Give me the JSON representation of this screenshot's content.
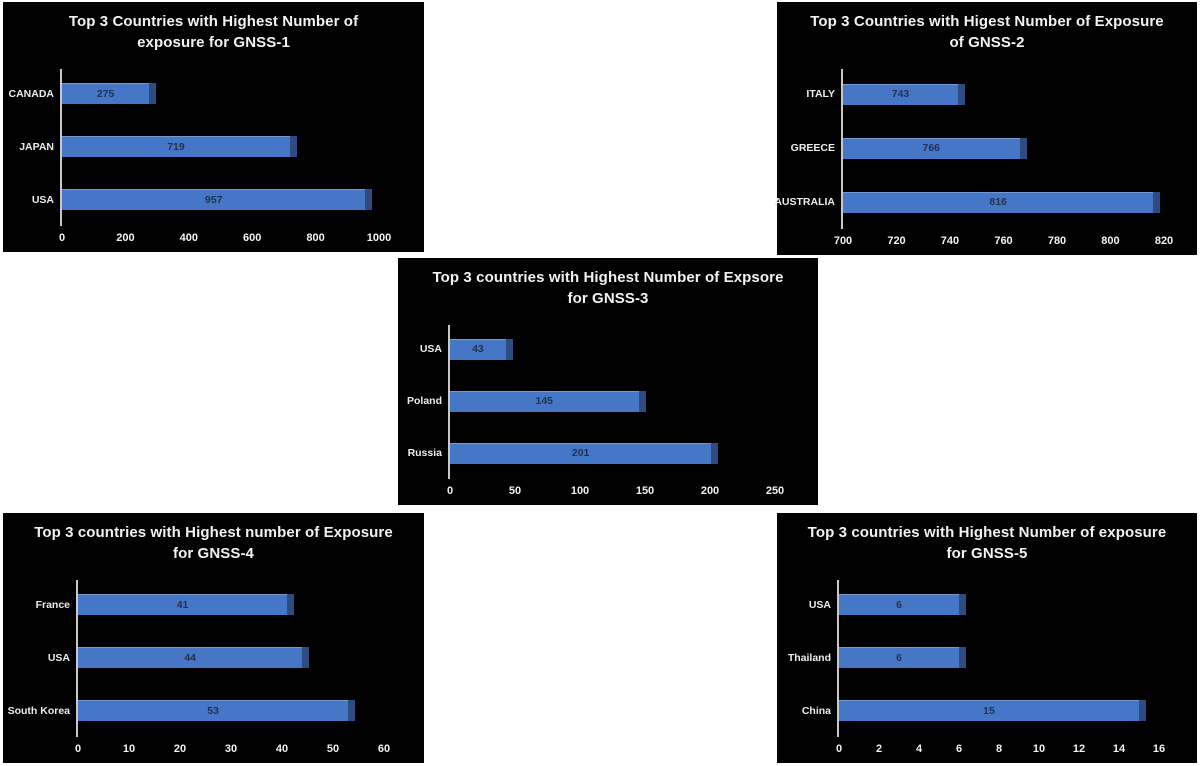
{
  "style": {
    "page_bg": "#ffffff",
    "panel_bg": "#000000",
    "bar_fill": "#4577c6",
    "bar_cap": "#2e4c80",
    "value_text": "#233150",
    "label_text": "#ececec",
    "axis_line": "#c9c9c9",
    "title_text": "#f2f2f2"
  },
  "chart_data": [
    {
      "id": "GNSS-1",
      "type": "bar",
      "orientation": "horizontal",
      "title": "Top 3 Countries with Highest Number of exposure for GNSS-1",
      "title_lines": [
        "Top 3 Countries with Highest Number of",
        "exposure for GNSS-1"
      ],
      "categories": [
        "CANADA",
        "JAPAN",
        "USA"
      ],
      "values": [
        275,
        719,
        957
      ],
      "xlim": [
        0,
        1000
      ],
      "xticks": [
        0,
        200,
        400,
        600,
        800,
        1000
      ],
      "grid": false
    },
    {
      "id": "GNSS-2",
      "type": "bar",
      "orientation": "horizontal",
      "title": "Top 3 Countries with Higest Number of Exposure of GNSS-2",
      "title_lines": [
        "Top 3 Countries with Higest Number of Exposure",
        "of GNSS-2"
      ],
      "categories": [
        "ITALY",
        "GREECE",
        "AUSTRALIA"
      ],
      "values": [
        743,
        766,
        816
      ],
      "xlim": [
        700,
        820
      ],
      "xticks": [
        700,
        720,
        740,
        760,
        780,
        800,
        820
      ],
      "grid": false
    },
    {
      "id": "GNSS-3",
      "type": "bar",
      "orientation": "horizontal",
      "title": "Top 3 countries with Highest Number of Expsore for GNSS-3",
      "title_lines": [
        "Top 3 countries with Highest Number of Expsore",
        "for GNSS-3"
      ],
      "categories": [
        "USA",
        "Poland",
        "Russia"
      ],
      "values": [
        43,
        145,
        201
      ],
      "xlim": [
        0,
        250
      ],
      "xticks": [
        0,
        50,
        100,
        150,
        200,
        250
      ],
      "grid": false
    },
    {
      "id": "GNSS-4",
      "type": "bar",
      "orientation": "horizontal",
      "title": "Top 3 countries with Highest number of Exposure for GNSS-4",
      "title_lines": [
        "Top 3 countries with Highest number of Exposure",
        "for GNSS-4"
      ],
      "categories": [
        "France",
        "USA",
        "South Korea"
      ],
      "values": [
        41,
        44,
        53
      ],
      "xlim": [
        0,
        60
      ],
      "xticks": [
        0,
        10,
        20,
        30,
        40,
        50,
        60
      ],
      "grid": false
    },
    {
      "id": "GNSS-5",
      "type": "bar",
      "orientation": "horizontal",
      "title": "Top 3 countries with Highest Number of exposure for GNSS-5",
      "title_lines": [
        "Top 3 countries with Highest Number of exposure",
        "for GNSS-5"
      ],
      "categories": [
        "USA",
        "Thailand",
        "China"
      ],
      "values": [
        6,
        6,
        15
      ],
      "xlim": [
        0,
        16
      ],
      "xticks": [
        0,
        2,
        4,
        6,
        8,
        10,
        12,
        14,
        16
      ],
      "grid": false
    }
  ]
}
